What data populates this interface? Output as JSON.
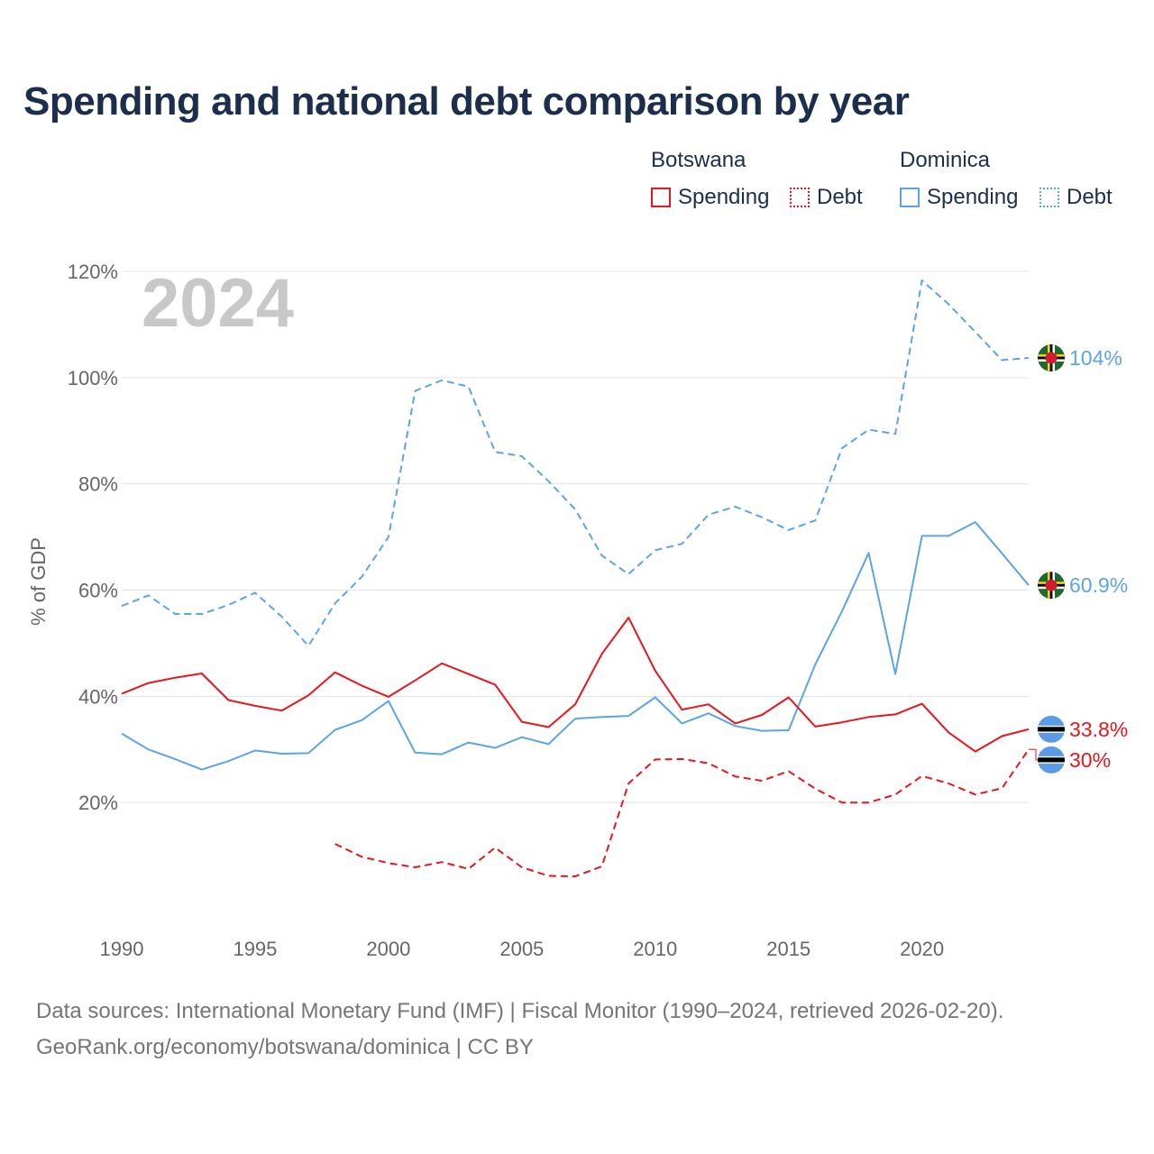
{
  "title": "Spending and national debt comparison by year",
  "legend": {
    "groups": [
      {
        "country": "Botswana",
        "color": "#e8151b",
        "items": [
          {
            "label": "Spending",
            "style": "solid"
          },
          {
            "label": "Debt",
            "style": "dotted"
          }
        ]
      },
      {
        "country": "Dominica",
        "color": "#5ba4e5",
        "items": [
          {
            "label": "Spending",
            "style": "solid"
          },
          {
            "label": "Debt",
            "style": "dotted"
          }
        ]
      }
    ]
  },
  "year_label": "2024",
  "source_line1": "Data sources: International Monetary Fund (IMF) | Fiscal Monitor (1990–2024, retrieved 2026-02-20).",
  "source_line2": "GeoRank.org/economy/botswana/dominica | CC BY",
  "chart_data": {
    "type": "line",
    "title": "Spending and national debt comparison by year",
    "xlabel": "",
    "ylabel": "% of GDP",
    "xlim": [
      1990,
      2024
    ],
    "ylim": [
      0,
      120
    ],
    "xticks": [
      1990,
      1995,
      2000,
      2005,
      2010,
      2015,
      2020
    ],
    "xtick_labels": [
      "1990",
      "1995",
      "2000",
      "2005",
      "2010",
      "2015",
      "2020"
    ],
    "yticks": [
      20,
      40,
      60,
      80,
      100,
      120
    ],
    "ytick_labels": [
      "20%",
      "40%",
      "60%",
      "80%",
      "100%",
      "120%"
    ],
    "series": [
      {
        "name": "Dominica Debt",
        "color": "#5ba4e5",
        "dash": "dashed",
        "end_label": "104%",
        "flag": "dominica-flag",
        "x": [
          1990,
          1991,
          1992,
          1993,
          1994,
          1995,
          1996,
          1997,
          1998,
          1999,
          2000,
          2001,
          2002,
          2003,
          2004,
          2005,
          2006,
          2007,
          2008,
          2009,
          2010,
          2011,
          2012,
          2013,
          2014,
          2015,
          2016,
          2017,
          2018,
          2019,
          2020,
          2021,
          2022,
          2023,
          2024
        ],
        "y": [
          57,
          59,
          55.5,
          55.5,
          57.2,
          59.5,
          55,
          49.5,
          57.5,
          62.5,
          70,
          97.5,
          99.5,
          98.3,
          86,
          85.2,
          80.5,
          75.2,
          66.5,
          63,
          67.5,
          68.7,
          74.2,
          75.7,
          73.7,
          71.3,
          73.1,
          86.7,
          90.2,
          89.4,
          118.3,
          113.8,
          108.6,
          103.3,
          103.7
        ]
      },
      {
        "name": "Dominica Spending",
        "color": "#5ba4e5",
        "dash": "solid",
        "end_label": "60.9%",
        "flag": "dominica-flag",
        "x": [
          1990,
          1991,
          1992,
          1993,
          1994,
          1995,
          1996,
          1997,
          1998,
          1999,
          2000,
          2001,
          2002,
          2003,
          2004,
          2005,
          2006,
          2007,
          2008,
          2009,
          2010,
          2011,
          2012,
          2013,
          2014,
          2015,
          2016,
          2017,
          2018,
          2019,
          2020,
          2021,
          2022,
          2023,
          2024
        ],
        "y": [
          33,
          30,
          28.2,
          26.2,
          27.8,
          29.8,
          29.2,
          29.3,
          33.7,
          35.5,
          39.1,
          29.4,
          29.1,
          31.3,
          30.3,
          32.3,
          31,
          35.8,
          36.1,
          36.3,
          39.8,
          34.9,
          36.8,
          34.4,
          33.5,
          33.6,
          46,
          56,
          67,
          44.2,
          70.2,
          70.2,
          72.8,
          66.9,
          60.9
        ]
      },
      {
        "name": "Botswana Spending",
        "color": "#e8151b",
        "dash": "solid",
        "end_label": "33.8%",
        "flag": "botswana-flag",
        "x": [
          1990,
          1991,
          1992,
          1993,
          1994,
          1995,
          1996,
          1997,
          1998,
          1999,
          2000,
          2001,
          2002,
          2003,
          2004,
          2005,
          2006,
          2007,
          2008,
          2009,
          2010,
          2011,
          2012,
          2013,
          2014,
          2015,
          2016,
          2017,
          2018,
          2019,
          2020,
          2021,
          2022,
          2023,
          2024
        ],
        "y": [
          40.5,
          42.5,
          43.5,
          44.3,
          39.3,
          38.2,
          37.3,
          40.2,
          44.5,
          42,
          39.9,
          43,
          46.2,
          44.2,
          42.2,
          35.2,
          34.2,
          38.5,
          48,
          54.8,
          44.8,
          37.5,
          38.5,
          34.9,
          36.5,
          39.8,
          34.3,
          35.1,
          36.1,
          36.6,
          38.6,
          33.2,
          29.6,
          32.5,
          33.8
        ]
      },
      {
        "name": "Botswana Debt",
        "color": "#e8151b",
        "dash": "dashed",
        "end_label": "30%",
        "flag": "botswana-flag",
        "x": [
          1998,
          1999,
          2000,
          2001,
          2002,
          2003,
          2004,
          2005,
          2006,
          2007,
          2008,
          2009,
          2010,
          2011,
          2012,
          2013,
          2014,
          2015,
          2016,
          2017,
          2018,
          2019,
          2020,
          2021,
          2022,
          2023,
          2024
        ],
        "y": [
          12.2,
          9.8,
          8.6,
          7.8,
          8.8,
          7.5,
          11.5,
          7.8,
          6.2,
          6.1,
          8,
          23.6,
          28.1,
          28.2,
          27.4,
          24.9,
          24.1,
          25.9,
          22.6,
          20,
          20,
          21.5,
          25,
          23.6,
          21.5,
          22.7,
          30
        ]
      }
    ]
  }
}
